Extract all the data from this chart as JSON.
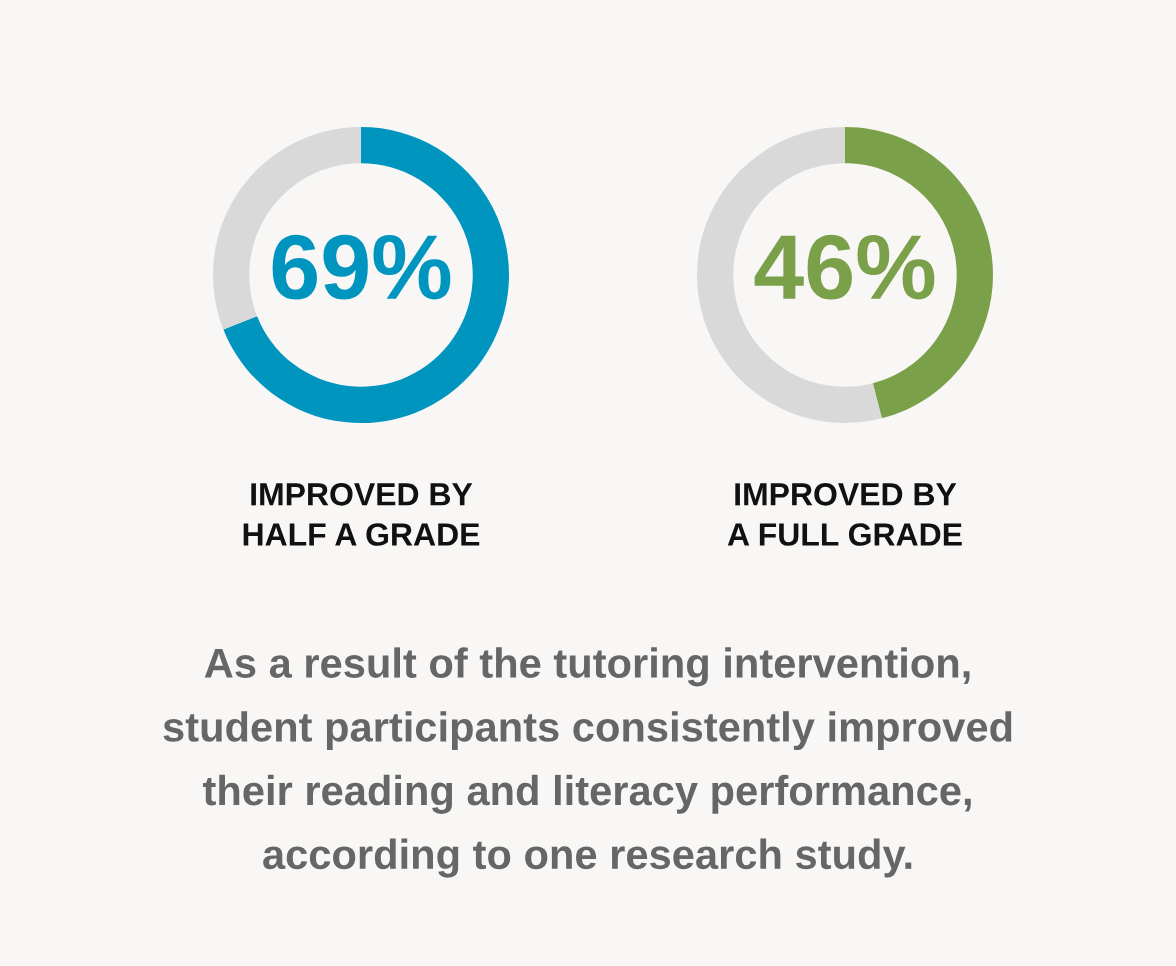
{
  "chart_data": [
    {
      "type": "donut",
      "title": "IMPROVED BY\nHALF A GRADE",
      "categories": [
        null,
        null
      ],
      "values": [
        69,
        31
      ],
      "colors": [
        "#0095bf",
        "#d9d9d9"
      ],
      "value_labels": [
        "69%",
        null
      ]
    },
    {
      "type": "donut",
      "title": "IMPROVED BY\nA FULL GRADE",
      "categories": [
        null,
        null
      ],
      "values": [
        46,
        54
      ],
      "colors": [
        "#7aa14a",
        "#d9d9d9"
      ],
      "value_labels": [
        "46%",
        null
      ]
    },
    {
      "type": "other",
      "annotations": [
        "As a result of the tutoring intervention,",
        "student participants consistently improved",
        "their reading and literacy performance,",
        "according to one research study."
      ]
    }
  ]
}
